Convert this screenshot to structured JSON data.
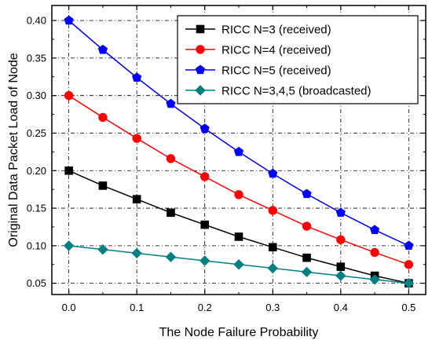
{
  "chart_data": {
    "type": "line",
    "title": "",
    "xlabel": "The Node Failure Probability",
    "ylabel": "Original Data Packet Load of Node",
    "xlim": [
      -0.025,
      0.525
    ],
    "ylim": [
      0.035,
      0.42
    ],
    "x_ticks": [
      "0.0",
      "0.1",
      "0.2",
      "0.3",
      "0.4",
      "0.5"
    ],
    "y_ticks": [
      "0.05",
      "0.10",
      "0.15",
      "0.20",
      "0.25",
      "0.30",
      "0.35",
      "0.40"
    ],
    "grid": true,
    "legend_position": "top-right",
    "x": [
      0.0,
      0.05,
      0.1,
      0.15,
      0.2,
      0.25,
      0.3,
      0.35,
      0.4,
      0.45,
      0.5
    ],
    "series": [
      {
        "name": "RICC N=3 (received)",
        "color": "#000000",
        "marker": "square",
        "values": [
          0.2,
          0.18,
          0.162,
          0.144,
          0.128,
          0.112,
          0.098,
          0.084,
          0.072,
          0.06,
          0.05
        ]
      },
      {
        "name": "RICC N=4 (received)",
        "color": "#ff0000",
        "marker": "circle",
        "values": [
          0.3,
          0.271,
          0.243,
          0.216,
          0.192,
          0.168,
          0.147,
          0.126,
          0.108,
          0.091,
          0.075
        ]
      },
      {
        "name": "RICC N=5 (received)",
        "color": "#0000ff",
        "marker": "pentagon",
        "values": [
          0.4,
          0.361,
          0.324,
          0.289,
          0.256,
          0.225,
          0.196,
          0.169,
          0.144,
          0.121,
          0.1
        ]
      },
      {
        "name": "RICC N=3,4,5 (broadcasted)",
        "color": "#008080",
        "marker": "diamond",
        "values": [
          0.1,
          0.095,
          0.09,
          0.085,
          0.08,
          0.075,
          0.07,
          0.065,
          0.06,
          0.055,
          0.05
        ]
      }
    ]
  }
}
